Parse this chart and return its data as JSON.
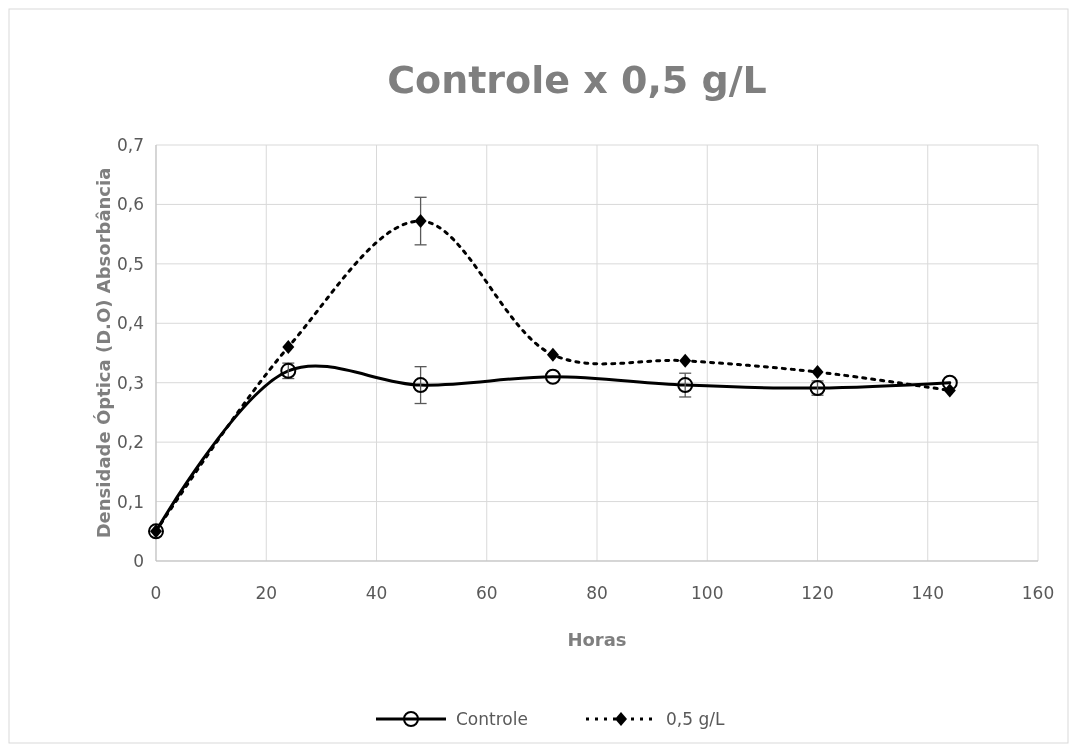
{
  "chart_data": {
    "type": "line",
    "title": "Controle x 0,5 g/L",
    "xlabel": "Horas",
    "ylabel": "Densidade Óptica (D.O) Absorbância",
    "x": [
      0,
      24,
      48,
      72,
      96,
      120,
      144
    ],
    "series": [
      {
        "name": "Controle",
        "color": "#000000",
        "marker": "circle",
        "line_style": "solid",
        "values": [
          0.05,
          0.32,
          0.296,
          0.31,
          0.296,
          0.291,
          0.3
        ],
        "errors": [
          null,
          0.013,
          0.031,
          null,
          0.02,
          0.012,
          null
        ]
      },
      {
        "name": "0,5 g/L",
        "color": "#000000",
        "marker": "diamond",
        "line_style": "dotted",
        "values": [
          0.05,
          0.36,
          0.572,
          0.347,
          0.337,
          0.318,
          0.287
        ],
        "errors": [
          null,
          null,
          0.04,
          null,
          null,
          null,
          null
        ]
      }
    ],
    "xlim": [
      0,
      160
    ],
    "xticks": [
      0,
      20,
      40,
      60,
      80,
      100,
      120,
      140,
      160
    ],
    "ylim": [
      0,
      0.7
    ],
    "yticks": [
      {
        "value": 0,
        "label": "0"
      },
      {
        "value": 0.1,
        "label": "0,1"
      },
      {
        "value": 0.2,
        "label": "0,2"
      },
      {
        "value": 0.3,
        "label": "0,3"
      },
      {
        "value": 0.4,
        "label": "0,4"
      },
      {
        "value": 0.5,
        "label": "0,5"
      },
      {
        "value": 0.6,
        "label": "0,6"
      },
      {
        "value": 0.7,
        "label": "0,7"
      }
    ],
    "grid": true,
    "legend": "bottom"
  }
}
